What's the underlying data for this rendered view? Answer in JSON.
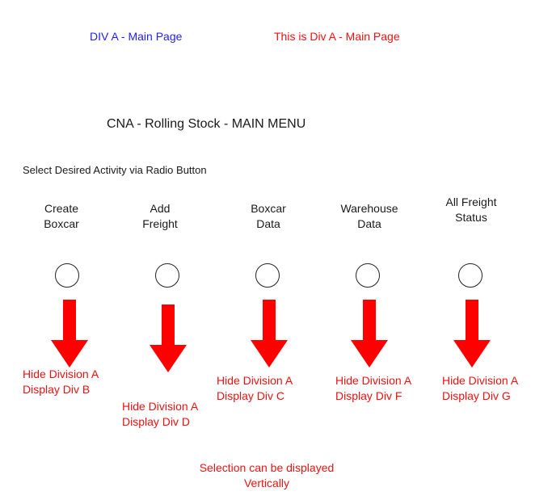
{
  "header": {
    "div_a_label": "DIV A  - Main Page",
    "div_a_note": "This is Div A - Main Page"
  },
  "menu_title": "CNA - Rolling Stock - MAIN MENU",
  "instruction": "Select Desired Activity via Radio Button",
  "activities": [
    {
      "label": "Create\nBoxcar",
      "note": "Hide Division A\nDisplay Div B"
    },
    {
      "label": "Add\nFreight",
      "note": "Hide Division A\nDisplay Div D"
    },
    {
      "label": "Boxcar\nData",
      "note": "Hide Division A\nDisplay Div C"
    },
    {
      "label": "Warehouse\nData",
      "note": "Hide Division A\nDisplay Div F"
    },
    {
      "label": "All Freight\nStatus",
      "note": "Hide Division A\nDisplay Div G"
    }
  ],
  "footer_note": "Selection can be displayed\nVertically",
  "colors": {
    "annotation_red": "#ee1111",
    "header_blue": "#2222ee",
    "arrow_red": "#ff0000"
  }
}
